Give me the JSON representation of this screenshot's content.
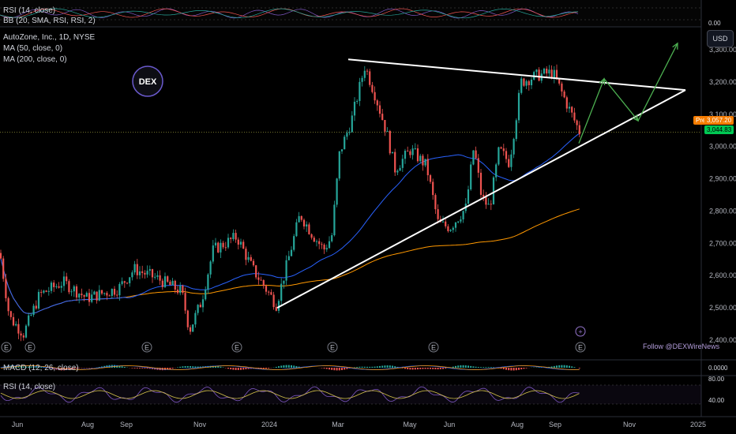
{
  "symbol_title": "AutoZone, Inc., 1D, NYSE",
  "indicators": {
    "ma50": "MA (50, close, 0)",
    "ma200": "MA (200, close, 0)",
    "rsi_top": "RSI (14, close)",
    "bb_top": "BB (20, SMA, RSI, RSI, 2)",
    "macd": "MACD (12, 26, close)",
    "rsi_bottom": "RSI (14, close)"
  },
  "currency_button": "USD",
  "logo_text": "DEX",
  "watermark": "Follow @DEXWireNews",
  "price_badges": {
    "pre_label": "Pre",
    "pre_value": "3,057.20",
    "last_value": "3,044.83"
  },
  "top_panel_value": "0.00",
  "macd_value": "0.0000",
  "rsi_levels": [
    "80.00",
    "40.00"
  ],
  "colors": {
    "up": "#26a69a",
    "down": "#ef5350",
    "ma50": "#2962ff",
    "ma200": "#ff9800",
    "trendline": "#ffffff",
    "projection": "#4caf50",
    "rsi": "#d4c24a",
    "pre_badge": "#f57c00",
    "last_badge": "#00c853"
  },
  "chart_data": {
    "type": "candlestick",
    "title": "AutoZone, Inc., 1D, NYSE",
    "x_ticks": [
      "Jun",
      "Aug",
      "Sep",
      "Nov",
      "2024",
      "Mar",
      "May",
      "Jun",
      "Aug",
      "Sep",
      "Nov",
      "2025"
    ],
    "y_ticks": [
      2400,
      2500,
      2600,
      2700,
      2800,
      2900,
      3000,
      3100,
      3200,
      3300
    ],
    "ylim": [
      2370,
      3340
    ],
    "series": [
      {
        "name": "MA (50, close, 0)",
        "color": "#2962ff"
      },
      {
        "name": "MA (200, close, 0)",
        "color": "#ff9800"
      }
    ],
    "annotations": {
      "triangle_upper": [
        {
          "date": "2024-02-20",
          "price": 3270
        },
        {
          "date": "2024-12-15",
          "price": 3175
        }
      ],
      "triangle_lower": [
        {
          "date": "2023-12-06",
          "price": 2500
        },
        {
          "date": "2024-12-15",
          "price": 3175
        }
      ],
      "projection_path": [
        3010,
        3210,
        3080,
        3320
      ]
    },
    "last_close": 3044.83,
    "premarket": 3057.2
  }
}
